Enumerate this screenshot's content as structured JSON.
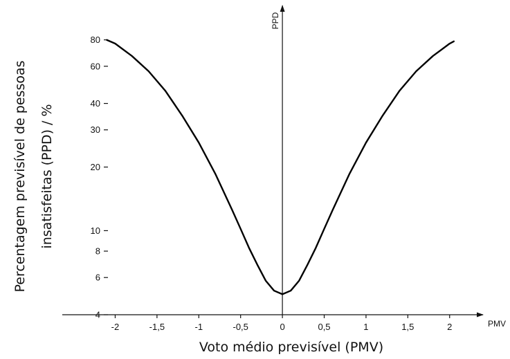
{
  "chart_data": {
    "type": "line",
    "title": "",
    "xlabel": "Voto médio previsível (PMV)",
    "ylabel_lines": [
      "Percentagem previsível de pessoas",
      "insatisfeitas (PPD) / %"
    ],
    "x_axis_end_label": "PMV",
    "y_axis_end_label": "PPD",
    "x_scale": "linear",
    "y_scale": "log",
    "xlim": [
      -2.55,
      2.3
    ],
    "ylim": [
      4,
      100
    ],
    "grid": false,
    "legend": "none",
    "x_ticks": [
      {
        "value": -2,
        "label": "-2"
      },
      {
        "value": -1.5,
        "label": "-1,5"
      },
      {
        "value": -1,
        "label": "-1"
      },
      {
        "value": -0.5,
        "label": "-0,5"
      },
      {
        "value": 0,
        "label": "0"
      },
      {
        "value": 0.5,
        "label": "0,5"
      },
      {
        "value": 1,
        "label": "1"
      },
      {
        "value": 1.5,
        "label": "1,5"
      },
      {
        "value": 2,
        "label": "2"
      }
    ],
    "y_ticks": [
      {
        "value": 4,
        "label": "4"
      },
      {
        "value": 6,
        "label": "6"
      },
      {
        "value": 8,
        "label": "8"
      },
      {
        "value": 10,
        "label": "10"
      },
      {
        "value": 20,
        "label": "20"
      },
      {
        "value": 30,
        "label": "30"
      },
      {
        "value": 40,
        "label": "40"
      },
      {
        "value": 60,
        "label": "60"
      },
      {
        "value": 80,
        "label": "80"
      }
    ],
    "series": [
      {
        "color": "#000000",
        "x": [
          -2.1,
          -2.0,
          -1.8,
          -1.6,
          -1.4,
          -1.2,
          -1.0,
          -0.8,
          -0.6,
          -0.5,
          -0.4,
          -0.3,
          -0.2,
          -0.1,
          0.0,
          0.1,
          0.2,
          0.3,
          0.4,
          0.5,
          0.6,
          0.8,
          1.0,
          1.2,
          1.4,
          1.6,
          1.8,
          2.0,
          2.05
        ],
        "y": [
          79.9,
          76.8,
          67.1,
          56.8,
          45.9,
          35.1,
          26.1,
          18.5,
          12.5,
          10.2,
          8.3,
          6.9,
          5.8,
          5.2,
          5.0,
          5.2,
          5.8,
          6.9,
          8.3,
          10.2,
          12.5,
          18.5,
          26.1,
          35.1,
          45.9,
          56.8,
          67.1,
          76.8,
          78.7
        ]
      }
    ]
  }
}
